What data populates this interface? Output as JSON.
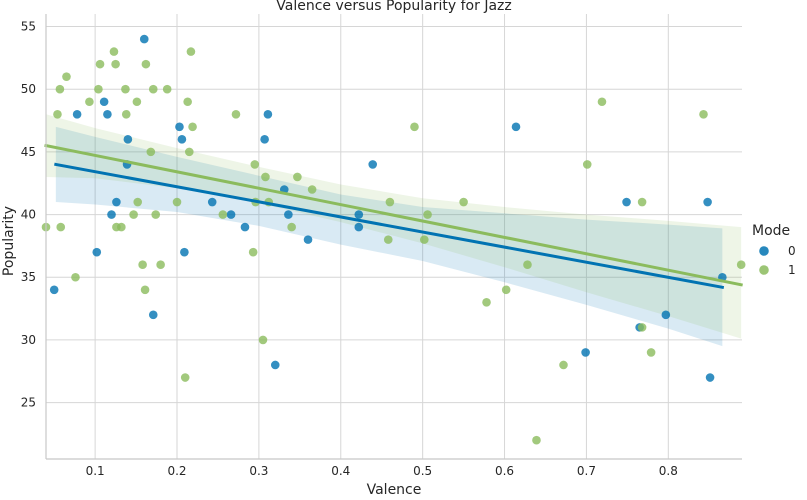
{
  "chart_data": {
    "type": "scatter",
    "title": "Valence versus Popularity for Jazz",
    "xlabel": "Valence",
    "ylabel": "Popularity",
    "xlim": [
      0.04,
      0.89
    ],
    "ylim": [
      20.5,
      56
    ],
    "xticks": [
      "0.1",
      "0.2",
      "0.3",
      "0.4",
      "0.5",
      "0.6",
      "0.7",
      "0.8"
    ],
    "yticks": [
      "25",
      "30",
      "35",
      "40",
      "45",
      "50",
      "55"
    ],
    "grid": true,
    "legend": {
      "title": "Mode",
      "placement": "right"
    },
    "series": [
      {
        "name": "0",
        "color": "#0173b2",
        "points": [
          [
            0.05,
            34
          ],
          [
            0.078,
            48
          ],
          [
            0.102,
            37
          ],
          [
            0.111,
            49
          ],
          [
            0.115,
            48
          ],
          [
            0.12,
            40
          ],
          [
            0.126,
            41
          ],
          [
            0.139,
            44
          ],
          [
            0.14,
            46
          ],
          [
            0.16,
            54
          ],
          [
            0.171,
            32
          ],
          [
            0.203,
            47
          ],
          [
            0.206,
            46
          ],
          [
            0.209,
            37
          ],
          [
            0.243,
            41
          ],
          [
            0.266,
            40
          ],
          [
            0.283,
            39
          ],
          [
            0.307,
            46
          ],
          [
            0.311,
            48
          ],
          [
            0.32,
            28
          ],
          [
            0.331,
            42
          ],
          [
            0.336,
            40
          ],
          [
            0.36,
            38
          ],
          [
            0.422,
            39
          ],
          [
            0.422,
            40
          ],
          [
            0.439,
            44
          ],
          [
            0.614,
            47
          ],
          [
            0.699,
            29
          ],
          [
            0.749,
            41
          ],
          [
            0.765,
            31
          ],
          [
            0.797,
            32
          ],
          [
            0.848,
            41
          ],
          [
            0.851,
            27
          ],
          [
            0.866,
            35
          ]
        ],
        "fit": {
          "x": [
            0.052,
            0.866
          ],
          "y": [
            44.0,
            34.2
          ]
        },
        "band": {
          "x": [
            0.052,
            0.1,
            0.2,
            0.3,
            0.4,
            0.5,
            0.6,
            0.7,
            0.8,
            0.866
          ],
          "upper": [
            47.0,
            46.2,
            44.6,
            43.1,
            41.6,
            40.6,
            40.1,
            39.6,
            39.2,
            38.9
          ],
          "lower": [
            41.0,
            40.8,
            40.2,
            39.1,
            37.6,
            36.3,
            34.6,
            32.8,
            30.9,
            29.5
          ]
        }
      },
      {
        "name": "1",
        "color": "#8bbb5d",
        "points": [
          [
            0.04,
            39
          ],
          [
            0.054,
            48
          ],
          [
            0.057,
            50
          ],
          [
            0.058,
            39
          ],
          [
            0.065,
            51
          ],
          [
            0.076,
            35
          ],
          [
            0.093,
            49
          ],
          [
            0.104,
            50
          ],
          [
            0.106,
            52
          ],
          [
            0.123,
            53
          ],
          [
            0.125,
            52
          ],
          [
            0.126,
            39
          ],
          [
            0.132,
            39
          ],
          [
            0.137,
            50
          ],
          [
            0.138,
            48
          ],
          [
            0.147,
            40
          ],
          [
            0.151,
            49
          ],
          [
            0.152,
            41
          ],
          [
            0.158,
            36
          ],
          [
            0.161,
            34
          ],
          [
            0.162,
            52
          ],
          [
            0.168,
            45
          ],
          [
            0.171,
            50
          ],
          [
            0.174,
            40
          ],
          [
            0.18,
            36
          ],
          [
            0.188,
            50
          ],
          [
            0.2,
            41
          ],
          [
            0.21,
            27
          ],
          [
            0.213,
            49
          ],
          [
            0.215,
            45
          ],
          [
            0.217,
            53
          ],
          [
            0.219,
            47
          ],
          [
            0.256,
            40
          ],
          [
            0.272,
            48
          ],
          [
            0.293,
            37
          ],
          [
            0.295,
            44
          ],
          [
            0.296,
            41
          ],
          [
            0.305,
            30
          ],
          [
            0.308,
            43
          ],
          [
            0.312,
            41
          ],
          [
            0.34,
            39
          ],
          [
            0.347,
            43
          ],
          [
            0.365,
            42
          ],
          [
            0.46,
            41
          ],
          [
            0.458,
            38
          ],
          [
            0.49,
            47
          ],
          [
            0.502,
            38
          ],
          [
            0.506,
            40
          ],
          [
            0.55,
            41
          ],
          [
            0.578,
            33
          ],
          [
            0.602,
            34
          ],
          [
            0.628,
            36
          ],
          [
            0.639,
            22
          ],
          [
            0.672,
            28
          ],
          [
            0.701,
            44
          ],
          [
            0.719,
            49
          ],
          [
            0.768,
            31
          ],
          [
            0.768,
            41
          ],
          [
            0.779,
            29
          ],
          [
            0.843,
            48
          ],
          [
            0.889,
            36
          ]
        ],
        "fit": {
          "x": [
            0.04,
            0.889
          ],
          "y": [
            45.5,
            34.4
          ]
        },
        "band": {
          "x": [
            0.04,
            0.1,
            0.2,
            0.3,
            0.4,
            0.5,
            0.6,
            0.7,
            0.8,
            0.889
          ],
          "upper": [
            48.0,
            46.9,
            45.3,
            43.8,
            42.4,
            41.3,
            40.6,
            40.0,
            39.5,
            39.0
          ],
          "lower": [
            43.0,
            42.9,
            42.1,
            40.9,
            39.4,
            37.7,
            35.8,
            33.8,
            31.9,
            30.1
          ]
        }
      }
    ]
  }
}
